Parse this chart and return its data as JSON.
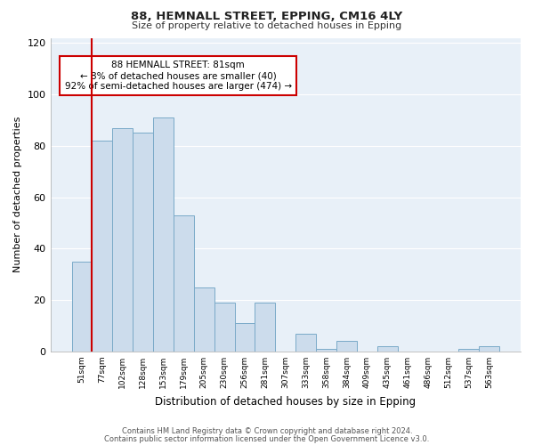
{
  "title": "88, HEMNALL STREET, EPPING, CM16 4LY",
  "subtitle": "Size of property relative to detached houses in Epping",
  "xlabel": "Distribution of detached houses by size in Epping",
  "ylabel": "Number of detached properties",
  "bar_labels": [
    "51sqm",
    "77sqm",
    "102sqm",
    "128sqm",
    "153sqm",
    "179sqm",
    "205sqm",
    "230sqm",
    "256sqm",
    "281sqm",
    "307sqm",
    "333sqm",
    "358sqm",
    "384sqm",
    "409sqm",
    "435sqm",
    "461sqm",
    "486sqm",
    "512sqm",
    "537sqm",
    "563sqm"
  ],
  "bar_heights": [
    35,
    82,
    87,
    85,
    91,
    53,
    25,
    19,
    11,
    19,
    0,
    7,
    1,
    4,
    0,
    2,
    0,
    0,
    0,
    1,
    2
  ],
  "bar_color": "#ccdcec",
  "bar_edge_color": "#7aaac8",
  "vline_x": 1,
  "vline_color": "#cc0000",
  "annotation_text": "88 HEMNALL STREET: 81sqm\n← 8% of detached houses are smaller (40)\n92% of semi-detached houses are larger (474) →",
  "annotation_box_edgecolor": "#cc0000",
  "annotation_box_facecolor": "#ffffff",
  "ylim": [
    0,
    122
  ],
  "yticks": [
    0,
    20,
    40,
    60,
    80,
    100,
    120
  ],
  "footer_line1": "Contains HM Land Registry data © Crown copyright and database right 2024.",
  "footer_line2": "Contains public sector information licensed under the Open Government Licence v3.0.",
  "background_color": "#ffffff",
  "plot_bg_color": "#e8f0f8",
  "grid_color": "#ffffff"
}
